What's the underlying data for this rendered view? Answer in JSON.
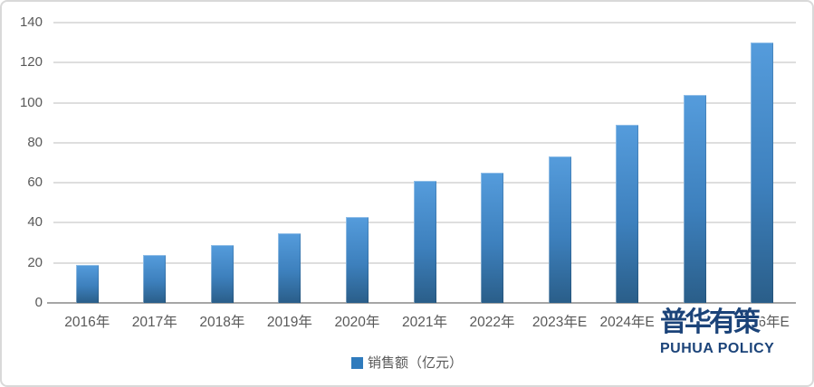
{
  "chart_data": {
    "type": "bar",
    "categories": [
      "2016年",
      "2017年",
      "2018年",
      "2019年",
      "2020年",
      "2021年",
      "2022年",
      "2023年E",
      "2024年E",
      "2025年E",
      "2026年E"
    ],
    "values": [
      19,
      24,
      29,
      35,
      43,
      61,
      65,
      73,
      89,
      104,
      130
    ],
    "series_name": "销售额（亿元）",
    "title": "",
    "xlabel": "",
    "ylabel": "",
    "ylim": [
      0,
      140
    ],
    "yticks": [
      0,
      20,
      40,
      60,
      80,
      100,
      120,
      140
    ],
    "grid": true,
    "legend_position": "bottom"
  },
  "legend": {
    "label": "销售额（亿元）"
  },
  "watermark": {
    "cn": "普华有策",
    "en": "PUHUA POLICY"
  },
  "colors": {
    "bar_top": "#559cdc",
    "bar_bottom": "#2a5e89",
    "legend_marker": "#2f7bbd",
    "gridline": "#dedede",
    "axis_line": "#a6a6a6",
    "tick_text": "#595959",
    "logo_blue": "#1b4379",
    "border": "#d9d9d9",
    "background": "#ffffff"
  }
}
